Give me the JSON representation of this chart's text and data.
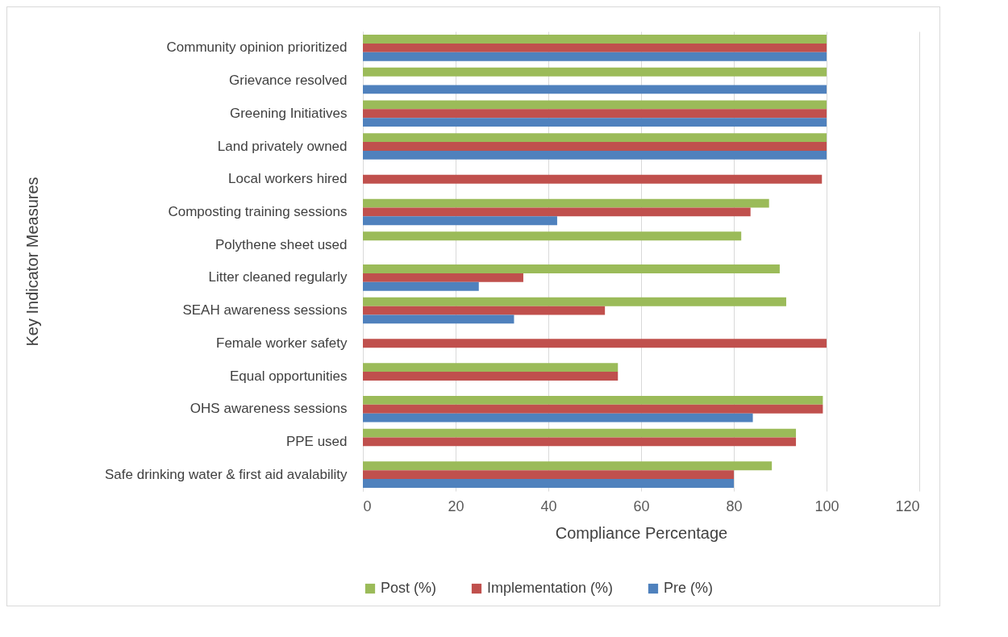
{
  "chart_data": {
    "type": "bar",
    "orientation": "horizontal",
    "xlabel": "Compliance Percentage",
    "ylabel": "Key Indicator Measures",
    "categories": [
      "Community opinion prioritized",
      "Grievance resolved",
      "Greening Initiatives",
      "Land privately owned",
      "Local workers hired",
      "Composting training sessions",
      "Polythene sheet used",
      "Litter cleaned regularly",
      "SEAH awareness sessions",
      "Female worker safety",
      "Equal opportunities",
      "OHS awareness sessions",
      "PPE used",
      "Safe drinking water & first aid avalability"
    ],
    "series": [
      {
        "name": "Post (%)",
        "color": "#9bbb59",
        "values": [
          100,
          100,
          100,
          100,
          null,
          87.6,
          81.6,
          89.9,
          91.3,
          null,
          55,
          99.2,
          93.4,
          88.2
        ]
      },
      {
        "name": "Implementation (%)",
        "color": "#c0504d",
        "values": [
          100,
          null,
          100,
          100,
          99,
          83.6,
          null,
          34.6,
          52.2,
          100,
          55,
          99.2,
          93.4,
          80
        ]
      },
      {
        "name": "Pre (%)",
        "color": "#4f81bd",
        "values": [
          100,
          100,
          100,
          100,
          null,
          41.9,
          null,
          25,
          32.6,
          null,
          null,
          84.1,
          null,
          80
        ]
      }
    ],
    "xlim": [
      0,
      120
    ],
    "xticks": [
      0,
      20,
      40,
      60,
      80,
      100,
      120
    ],
    "grid": "x",
    "legend": "bottom"
  }
}
